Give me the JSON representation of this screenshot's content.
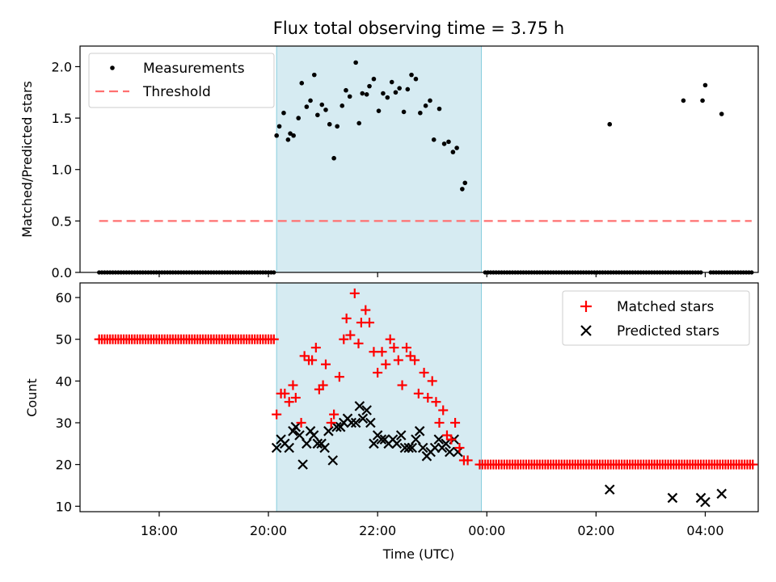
{
  "chart_data": {
    "title": "Flux total observing time = 3.75 h",
    "xlabel": "Time (UTC)",
    "x_unit": "hours (UTC, clock continues past midnight)",
    "xlim": [
      16.55,
      28.97
    ],
    "xticks": [
      {
        "value": 18,
        "label": "18:00"
      },
      {
        "value": 20,
        "label": "20:00"
      },
      {
        "value": 22,
        "label": "22:00"
      },
      {
        "value": 24,
        "label": "00:00"
      },
      {
        "value": 26,
        "label": "02:00"
      },
      {
        "value": 28,
        "label": "04:00"
      }
    ],
    "observing_window": {
      "start": 20.15,
      "end": 23.9,
      "color": "#add8e6"
    },
    "top": {
      "type": "scatter",
      "ylabel": "Matched/Predicted stars",
      "ylim": [
        0,
        2.2
      ],
      "yticks": [
        0,
        0.5,
        1.0,
        1.5,
        2.0
      ],
      "ytick_labels": [
        "0.0",
        "0.5",
        "1.0",
        "1.5",
        "2.0"
      ],
      "legend": {
        "position": "top-left",
        "entries": [
          {
            "label": "Measurements",
            "marker": "dot",
            "color": "#000000"
          },
          {
            "label": "Threshold",
            "marker": "dashed-line",
            "color": "#ff6666"
          }
        ]
      },
      "threshold": {
        "value": 0.5,
        "x_range": [
          16.9,
          28.85
        ],
        "color": "#ff7777"
      },
      "zero_ranges": [
        [
          16.9,
          20.1
        ],
        [
          23.97,
          27.94
        ],
        [
          28.1,
          28.87
        ]
      ],
      "zero_step": 0.05,
      "points": [
        [
          20.15,
          1.33
        ],
        [
          20.2,
          1.42
        ],
        [
          20.28,
          1.55
        ],
        [
          20.36,
          1.29
        ],
        [
          20.4,
          1.35
        ],
        [
          20.46,
          1.33
        ],
        [
          20.55,
          1.5
        ],
        [
          20.61,
          1.84
        ],
        [
          20.7,
          1.61
        ],
        [
          20.77,
          1.67
        ],
        [
          20.84,
          1.92
        ],
        [
          20.9,
          1.53
        ],
        [
          20.98,
          1.63
        ],
        [
          21.05,
          1.58
        ],
        [
          21.12,
          1.44
        ],
        [
          21.2,
          1.11
        ],
        [
          21.26,
          1.42
        ],
        [
          21.35,
          1.62
        ],
        [
          21.42,
          1.77
        ],
        [
          21.49,
          1.71
        ],
        [
          21.6,
          2.04
        ],
        [
          21.66,
          1.45
        ],
        [
          21.72,
          1.74
        ],
        [
          21.8,
          1.73
        ],
        [
          21.85,
          1.81
        ],
        [
          21.93,
          1.88
        ],
        [
          22.02,
          1.57
        ],
        [
          22.1,
          1.74
        ],
        [
          22.18,
          1.7
        ],
        [
          22.26,
          1.85
        ],
        [
          22.33,
          1.75
        ],
        [
          22.4,
          1.79
        ],
        [
          22.48,
          1.56
        ],
        [
          22.55,
          1.78
        ],
        [
          22.62,
          1.92
        ],
        [
          22.7,
          1.88
        ],
        [
          22.78,
          1.55
        ],
        [
          22.88,
          1.62
        ],
        [
          22.96,
          1.67
        ],
        [
          23.03,
          1.29
        ],
        [
          23.13,
          1.59
        ],
        [
          23.22,
          1.25
        ],
        [
          23.3,
          1.27
        ],
        [
          23.38,
          1.17
        ],
        [
          23.45,
          1.21
        ],
        [
          23.55,
          0.81
        ],
        [
          23.6,
          0.87
        ],
        [
          26.25,
          1.44
        ],
        [
          27.95,
          1.67
        ],
        [
          28.0,
          1.82
        ],
        [
          27.6,
          1.67
        ],
        [
          28.3,
          1.54
        ]
      ]
    },
    "bottom": {
      "type": "scatter",
      "ylabel": "Count",
      "ylim": [
        8.7,
        63.5
      ],
      "yticks": [
        10,
        20,
        30,
        40,
        50,
        60
      ],
      "ytick_labels": [
        "10",
        "20",
        "30",
        "40",
        "50",
        "60"
      ],
      "legend": {
        "position": "top-right",
        "entries": [
          {
            "label": "Matched stars",
            "marker": "plus",
            "color": "#ff0000"
          },
          {
            "label": "Predicted stars",
            "marker": "x",
            "color": "#000000"
          }
        ]
      },
      "matched_constant_ranges": [
        {
          "from": 16.9,
          "to": 20.1,
          "value": 50
        },
        {
          "from": 23.87,
          "to": 28.87,
          "value": 20
        }
      ],
      "constant_step": 0.05,
      "matched_points": [
        [
          20.15,
          32
        ],
        [
          20.23,
          37
        ],
        [
          20.3,
          37
        ],
        [
          20.38,
          35
        ],
        [
          20.45,
          39
        ],
        [
          20.5,
          36
        ],
        [
          20.6,
          30
        ],
        [
          20.66,
          46
        ],
        [
          20.74,
          45
        ],
        [
          20.8,
          45
        ],
        [
          20.87,
          48
        ],
        [
          20.93,
          38
        ],
        [
          21.0,
          39
        ],
        [
          21.05,
          44
        ],
        [
          21.15,
          30
        ],
        [
          21.2,
          32
        ],
        [
          21.3,
          41
        ],
        [
          21.38,
          50
        ],
        [
          21.43,
          55
        ],
        [
          21.5,
          51
        ],
        [
          21.58,
          61
        ],
        [
          21.65,
          49
        ],
        [
          21.7,
          54
        ],
        [
          21.78,
          57
        ],
        [
          21.85,
          54
        ],
        [
          21.93,
          47
        ],
        [
          22.0,
          42
        ],
        [
          22.08,
          47
        ],
        [
          22.15,
          44
        ],
        [
          22.23,
          50
        ],
        [
          22.3,
          48
        ],
        [
          22.38,
          45
        ],
        [
          22.45,
          39
        ],
        [
          22.53,
          48
        ],
        [
          22.6,
          46
        ],
        [
          22.68,
          45
        ],
        [
          22.75,
          37
        ],
        [
          22.85,
          42
        ],
        [
          22.92,
          36
        ],
        [
          23.0,
          40
        ],
        [
          23.07,
          35
        ],
        [
          23.13,
          30
        ],
        [
          23.2,
          33
        ],
        [
          23.27,
          27
        ],
        [
          23.35,
          26
        ],
        [
          23.42,
          30
        ],
        [
          23.5,
          24
        ],
        [
          23.58,
          21
        ],
        [
          23.65,
          21
        ]
      ],
      "predicted_points": [
        [
          20.15,
          24
        ],
        [
          20.23,
          26
        ],
        [
          20.3,
          25
        ],
        [
          20.38,
          24
        ],
        [
          20.45,
          28
        ],
        [
          20.5,
          29
        ],
        [
          20.57,
          27
        ],
        [
          20.63,
          20
        ],
        [
          20.7,
          25
        ],
        [
          20.77,
          28
        ],
        [
          20.83,
          27
        ],
        [
          20.9,
          25
        ],
        [
          20.97,
          25
        ],
        [
          21.03,
          24
        ],
        [
          21.1,
          28
        ],
        [
          21.18,
          21
        ],
        [
          21.25,
          29
        ],
        [
          21.32,
          29
        ],
        [
          21.38,
          30
        ],
        [
          21.45,
          31
        ],
        [
          21.52,
          30
        ],
        [
          21.6,
          30
        ],
        [
          21.67,
          34
        ],
        [
          21.73,
          31
        ],
        [
          21.8,
          33
        ],
        [
          21.87,
          30
        ],
        [
          21.93,
          25
        ],
        [
          22.0,
          27
        ],
        [
          22.07,
          26
        ],
        [
          22.13,
          26
        ],
        [
          22.2,
          25
        ],
        [
          22.28,
          26
        ],
        [
          22.35,
          25
        ],
        [
          22.43,
          27
        ],
        [
          22.5,
          24
        ],
        [
          22.57,
          24
        ],
        [
          22.63,
          24
        ],
        [
          22.7,
          26
        ],
        [
          22.77,
          28
        ],
        [
          22.83,
          24
        ],
        [
          22.9,
          22
        ],
        [
          22.97,
          23
        ],
        [
          23.05,
          24
        ],
        [
          23.12,
          26
        ],
        [
          23.18,
          24
        ],
        [
          23.25,
          25
        ],
        [
          23.32,
          23
        ],
        [
          23.4,
          26
        ],
        [
          23.47,
          23
        ],
        [
          26.25,
          14
        ],
        [
          27.92,
          12
        ],
        [
          28.0,
          11
        ],
        [
          27.4,
          12
        ],
        [
          28.3,
          13
        ]
      ]
    }
  }
}
